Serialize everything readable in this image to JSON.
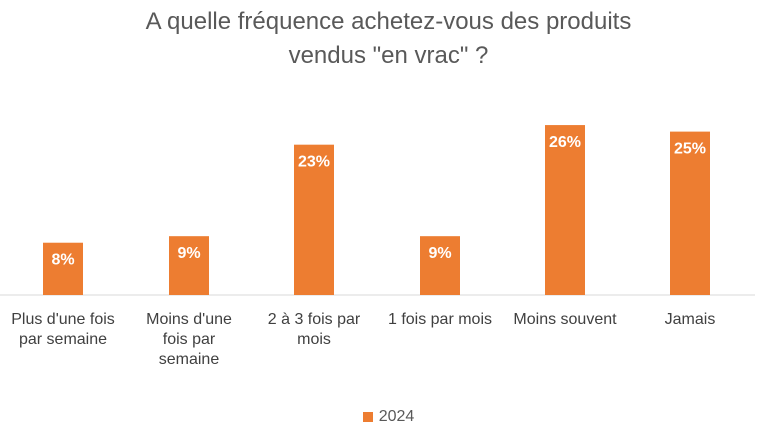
{
  "chart_data": {
    "type": "bar",
    "title_lines": [
      "A quelle fréquence achetez-vous des produits",
      "vendus \"en vrac\" ?"
    ],
    "categories": [
      [
        "Plus d'une fois",
        "par semaine"
      ],
      [
        "Moins d'une",
        "fois par",
        "semaine"
      ],
      [
        "2 à 3 fois par",
        "mois"
      ],
      [
        "1 fois par mois"
      ],
      [
        "Moins souvent"
      ],
      [
        "Jamais"
      ]
    ],
    "series": [
      {
        "name": "2024",
        "values": [
          8,
          9,
          23,
          9,
          26,
          25
        ],
        "color": "#ED7D31"
      }
    ],
    "value_labels": [
      "8%",
      "9%",
      "23%",
      "9%",
      "26%",
      "25%"
    ],
    "ylim": [
      0,
      28
    ],
    "legend_position": "bottom",
    "grid": false
  }
}
